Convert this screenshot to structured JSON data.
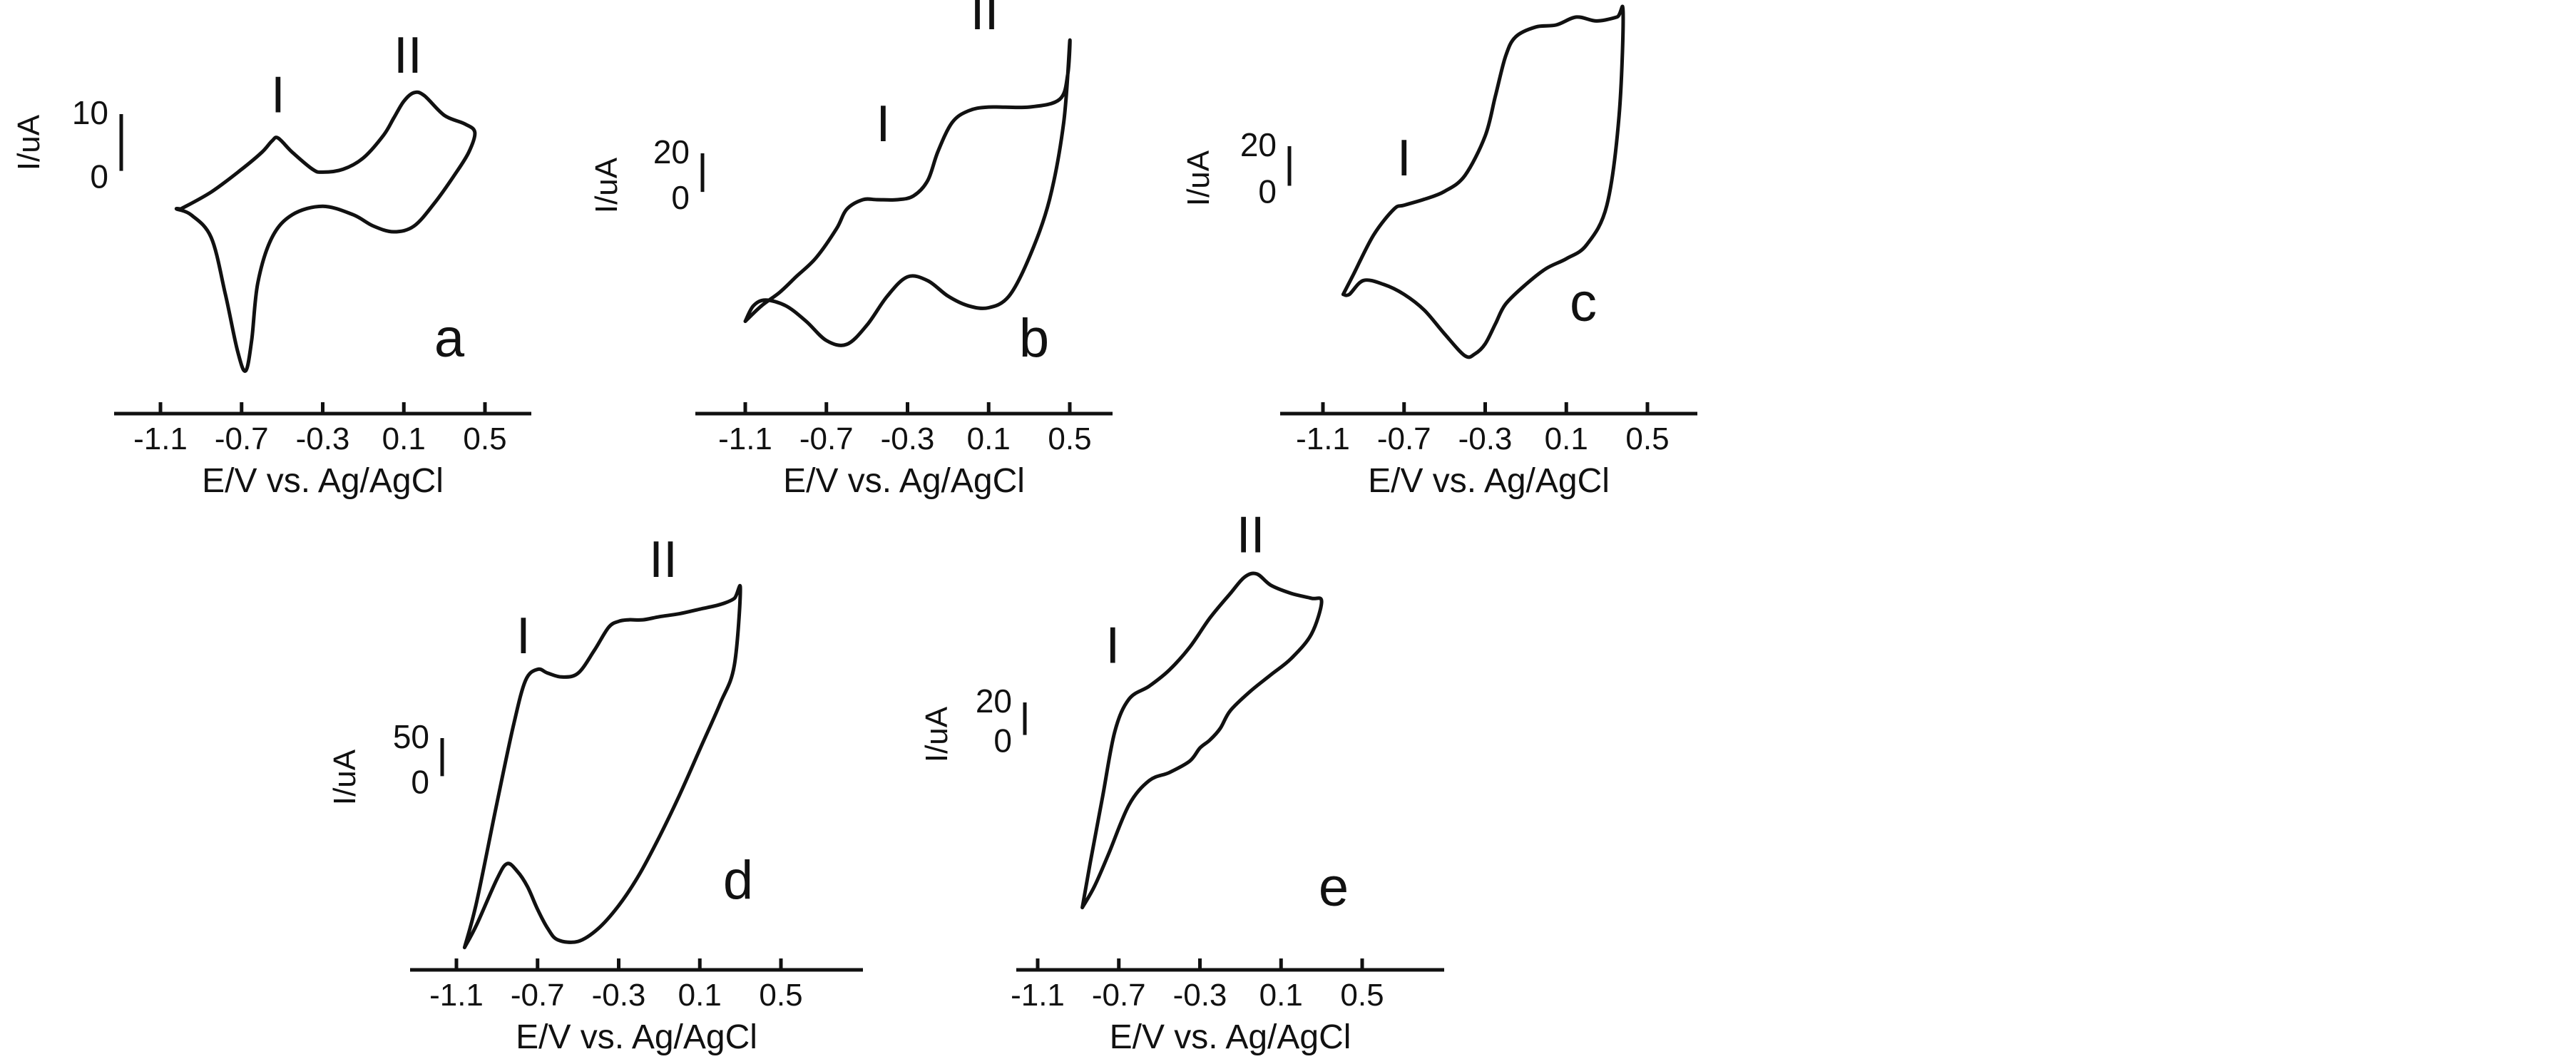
{
  "chart_data": [
    {
      "type": "line",
      "panel_label": "a",
      "xlabel": "E/V vs. Ag/AgCl",
      "ylabel": "I/uA",
      "x_ticks": [
        "-1.1",
        "-0.7",
        "-0.3",
        "0.1",
        "0.5"
      ],
      "xlim": [
        -1.1,
        0.5
      ],
      "scale_bar": {
        "top_label": "10",
        "bottom_label": "0",
        "value": 10
      },
      "peak_labels": [
        {
          "text": "I",
          "x": -0.52,
          "y": 6.5
        },
        {
          "text": "II",
          "x": 0.12,
          "y": 13.5
        }
      ],
      "ylim": [
        -38,
        16
      ],
      "series": [
        {
          "x": [
            -1.0,
            -0.85,
            -0.7,
            -0.6,
            -0.55,
            -0.52,
            -0.45,
            -0.35,
            -0.3,
            -0.2,
            -0.1,
            0.0,
            0.05,
            0.1,
            0.15,
            0.2,
            0.3,
            0.4,
            0.45,
            0.42,
            0.35,
            0.25,
            0.15,
            0.05,
            -0.05,
            -0.15,
            -0.3,
            -0.45,
            -0.55,
            -0.62,
            -0.65,
            -0.68,
            -0.72,
            -0.78,
            -0.85,
            -0.95,
            -1.02,
            -1.0
          ],
          "y": [
            -7,
            -4,
            0,
            3,
            5,
            5.5,
            3,
            0,
            -0.5,
            0,
            2,
            6,
            9,
            12,
            13.5,
            13,
            9.5,
            8,
            6.5,
            3,
            -1,
            -6,
            -10,
            -11,
            -10,
            -8,
            -6.5,
            -8,
            -12,
            -20,
            -30,
            -35.5,
            -32,
            -22,
            -12,
            -8,
            -7,
            -7
          ]
        }
      ]
    },
    {
      "type": "line",
      "panel_label": "b",
      "xlabel": "E/V vs. Ag/AgCl",
      "ylabel": "I/uA",
      "x_ticks": [
        "-1.1",
        "-0.7",
        "-0.3",
        "0.1",
        "0.5"
      ],
      "xlim": [
        -1.1,
        0.5
      ],
      "scale_bar": {
        "top_label": "20",
        "bottom_label": "0",
        "value": 20
      },
      "peak_labels": [
        {
          "text": "I",
          "x": -0.42,
          "y": 20
        },
        {
          "text": "II",
          "x": 0.08,
          "y": 78
        }
      ],
      "ylim": [
        -85,
        85
      ],
      "series": [
        {
          "x": [
            -1.1,
            -1.02,
            -0.93,
            -0.85,
            -0.75,
            -0.65,
            -0.6,
            -0.52,
            -0.45,
            -0.35,
            -0.27,
            -0.2,
            -0.15,
            -0.08,
            0.0,
            0.1,
            0.3,
            0.45,
            0.49,
            0.5,
            0.47,
            0.4,
            0.3,
            0.2,
            0.1,
            0.0,
            -0.1,
            -0.2,
            -0.3,
            -0.4,
            -0.5,
            -0.6,
            -0.7,
            -0.8,
            -0.9,
            -1.0,
            -1.06,
            -1.1
          ],
          "y": [
            -63,
            -55,
            -48,
            -40,
            -30,
            -15,
            -5,
            0,
            0,
            0,
            2,
            10,
            25,
            40,
            46,
            48,
            48,
            52,
            65,
            82,
            40,
            0,
            -30,
            -50,
            -56,
            -55,
            -50,
            -42,
            -40,
            -50,
            -65,
            -75,
            -73,
            -63,
            -55,
            -52,
            -55,
            -63
          ]
        }
      ]
    },
    {
      "type": "line",
      "panel_label": "c",
      "xlabel": "E/V vs. Ag/AgCl",
      "ylabel": "I/uA",
      "x_ticks": [
        "-1.1",
        "-0.7",
        "-0.3",
        "0.1",
        "0.5"
      ],
      "xlim": [
        -1.1,
        0.5
      ],
      "scale_bar": {
        "top_label": "20",
        "bottom_label": "0",
        "value": 20
      },
      "peak_labels": [
        {
          "text": "I",
          "x": -0.7,
          "y": 10
        },
        {
          "text": "II",
          "x": -0.18,
          "y": 100
        }
      ],
      "ylim": [
        -75,
        105
      ],
      "series": [
        {
          "x": [
            -1.0,
            -0.95,
            -0.85,
            -0.75,
            -0.7,
            -0.6,
            -0.5,
            -0.4,
            -0.3,
            -0.25,
            -0.2,
            -0.15,
            -0.05,
            0.05,
            0.15,
            0.25,
            0.35,
            0.38,
            0.36,
            0.3,
            0.2,
            0.1,
            0.0,
            -0.1,
            -0.2,
            -0.25,
            -0.3,
            -0.35,
            -0.4,
            -0.5,
            -0.6,
            -0.7,
            -0.8,
            -0.9,
            -0.97,
            -1.0
          ],
          "y": [
            -40,
            -30,
            -10,
            3,
            5,
            8,
            12,
            20,
            40,
            60,
            80,
            90,
            95,
            96,
            100,
            98,
            100,
            102,
            50,
            5,
            -15,
            -22,
            -27,
            -35,
            -45,
            -55,
            -65,
            -70,
            -71,
            -60,
            -48,
            -40,
            -35,
            -33,
            -40,
            -40
          ]
        }
      ]
    },
    {
      "type": "line",
      "panel_label": "d",
      "xlabel": "E/V vs. Ag/AgCl",
      "ylabel": "I/uA",
      "x_ticks": [
        "-1.1",
        "-0.7",
        "-0.3",
        "0.1",
        "0.5"
      ],
      "xlim": [
        -1.1,
        0.5
      ],
      "scale_bar": {
        "top_label": "50",
        "bottom_label": "0",
        "value": 50
      },
      "peak_labels": [
        {
          "text": "I",
          "x": -0.77,
          "y": 120
        },
        {
          "text": "II",
          "x": -0.08,
          "y": 220
        }
      ],
      "ylim": [
        -260,
        250
      ],
      "series": [
        {
          "x": [
            -1.06,
            -1.0,
            -0.9,
            -0.82,
            -0.76,
            -0.7,
            -0.65,
            -0.58,
            -0.5,
            -0.42,
            -0.35,
            -0.3,
            -0.25,
            -0.18,
            -0.1,
            0.0,
            0.1,
            0.2,
            0.27,
            0.3,
            0.27,
            0.2,
            0.1,
            0.0,
            -0.1,
            -0.2,
            -0.3,
            -0.4,
            -0.5,
            -0.6,
            -0.65,
            -0.7,
            -0.75,
            -0.8,
            -0.85,
            -0.9,
            -1.0,
            -1.06
          ],
          "y": [
            -240,
            -180,
            -50,
            50,
            110,
            125,
            120,
            115,
            120,
            150,
            180,
            188,
            190,
            190,
            194,
            198,
            204,
            210,
            218,
            230,
            130,
            80,
            20,
            -40,
            -95,
            -145,
            -185,
            -215,
            -232,
            -230,
            -215,
            -190,
            -160,
            -140,
            -130,
            -150,
            -210,
            -240
          ]
        }
      ]
    },
    {
      "type": "line",
      "panel_label": "e",
      "xlabel": "E/V vs. Ag/AgCl",
      "ylabel": "I/uA",
      "x_ticks": [
        "-1.1",
        "-0.7",
        "-0.3",
        "0.1",
        "0.5"
      ],
      "xlim": [
        -1.1,
        0.5
      ],
      "scale_bar": {
        "top_label": "20",
        "bottom_label": "0",
        "value": 20
      },
      "peak_labels": [
        {
          "text": "I",
          "x": -0.73,
          "y": 50
        },
        {
          "text": "II",
          "x": -0.05,
          "y": 118
        }
      ],
      "ylim": [
        -100,
        130
      ],
      "series": [
        {
          "x": [
            -0.88,
            -0.84,
            -0.78,
            -0.72,
            -0.65,
            -0.55,
            -0.45,
            -0.35,
            -0.25,
            -0.15,
            -0.08,
            -0.02,
            0.05,
            0.15,
            0.25,
            0.3,
            0.25,
            0.15,
            0.05,
            -0.05,
            -0.15,
            -0.2,
            -0.25,
            -0.3,
            -0.35,
            -0.45,
            -0.55,
            -0.65,
            -0.75,
            -0.82,
            -0.88
          ],
          "y": [
            -88,
            -60,
            -20,
            20,
            40,
            48,
            58,
            72,
            90,
            105,
            115,
            117,
            110,
            105,
            102,
            100,
            80,
            65,
            55,
            45,
            33,
            22,
            15,
            10,
            2,
            -5,
            -10,
            -25,
            -55,
            -75,
            -88
          ]
        }
      ]
    }
  ]
}
